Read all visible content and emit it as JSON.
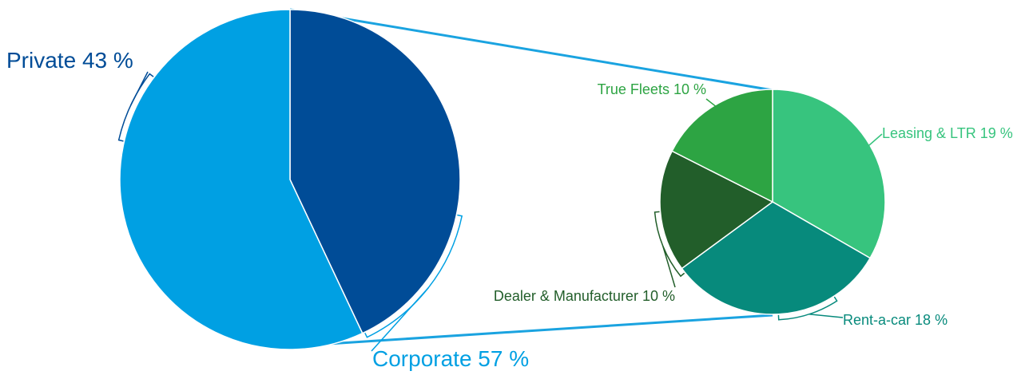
{
  "chart_data": [
    {
      "type": "pie",
      "categories": [
        "Private",
        "Corporate"
      ],
      "values": [
        43,
        57
      ],
      "value_labels": [
        "43 %",
        "57 %"
      ],
      "colors": [
        "#004c97",
        "#00a0e3"
      ]
    },
    {
      "type": "pie",
      "categories": [
        "Leasing & LTR",
        "Rent-a-car",
        "Dealer & Manufacturer",
        "True Fleets"
      ],
      "values": [
        19,
        18,
        10,
        10
      ],
      "value_labels": [
        "19 %",
        "18 %",
        "10 %",
        "10 %"
      ],
      "colors": [
        "#37c47e",
        "#078a7c",
        "#225e2a",
        "#2da443"
      ]
    }
  ]
}
